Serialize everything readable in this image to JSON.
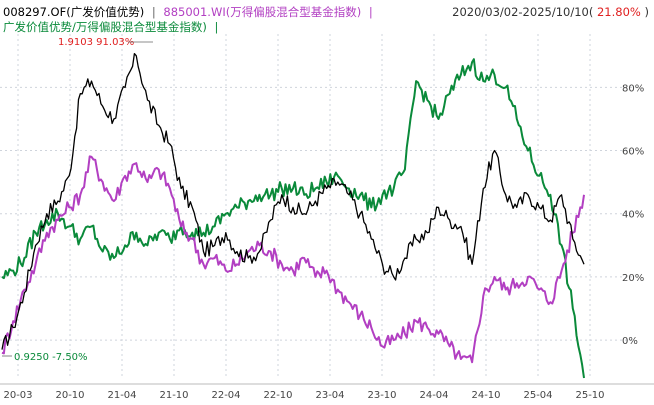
{
  "header": {
    "fund_label": "008297.OF(广发价值优势)",
    "separator": "|",
    "index_label": "885001.WI(万得偏股混合型基金指数)",
    "range_prefix": "2020/03/02-2025/10/10(",
    "range_value": "21.80%",
    "range_suffix": ")",
    "ratio_label": "广发价值优势/万得偏股混合型基金指数)",
    "ratio_separator": "|"
  },
  "annotations": {
    "max_label": "1.9103 91.03%",
    "min_label": "0.9250 -7.50%"
  },
  "colors": {
    "fund": "#000000",
    "index": "#b23fc2",
    "ratio": "#0a8a3a",
    "grid": "#cfd4dc",
    "up": "#e02020"
  },
  "chart_data": {
    "type": "line",
    "x_ticks": [
      "20-03",
      "20-10",
      "21-04",
      "21-10",
      "22-04",
      "22-10",
      "23-04",
      "23-10",
      "24-04",
      "24-10",
      "25-04",
      "25-10"
    ],
    "y_ticks": [
      "0%",
      "20%",
      "40%",
      "60%",
      "80%"
    ],
    "ylim": [
      -12,
      95
    ],
    "grid": true,
    "series": [
      {
        "name": "008297.OF(广发价值优势)",
        "color": "#000000",
        "points": [
          [
            0,
            -3
          ],
          [
            1,
            4
          ],
          [
            2,
            15
          ],
          [
            3,
            30
          ],
          [
            4,
            40
          ],
          [
            5,
            44
          ],
          [
            6,
            52
          ],
          [
            7,
            78
          ],
          [
            8,
            82
          ],
          [
            9,
            74
          ],
          [
            10,
            70
          ],
          [
            11,
            80
          ],
          [
            12,
            90
          ],
          [
            13,
            76
          ],
          [
            14,
            68
          ],
          [
            15,
            62
          ],
          [
            16,
            48
          ],
          [
            17,
            42
          ],
          [
            18,
            28
          ],
          [
            19,
            30
          ],
          [
            20,
            34
          ],
          [
            21,
            28
          ],
          [
            22,
            26
          ],
          [
            23,
            28
          ],
          [
            24,
            38
          ],
          [
            25,
            46
          ],
          [
            26,
            42
          ],
          [
            27,
            40
          ],
          [
            28,
            44
          ],
          [
            29,
            48
          ],
          [
            30,
            50
          ],
          [
            31,
            46
          ],
          [
            32,
            40
          ],
          [
            33,
            32
          ],
          [
            34,
            24
          ],
          [
            35,
            20
          ],
          [
            36,
            26
          ],
          [
            37,
            32
          ],
          [
            38,
            34
          ],
          [
            39,
            42
          ],
          [
            40,
            38
          ],
          [
            41,
            36
          ],
          [
            42,
            24
          ],
          [
            43,
            48
          ],
          [
            44,
            60
          ],
          [
            45,
            46
          ],
          [
            46,
            42
          ],
          [
            47,
            46
          ],
          [
            48,
            42
          ],
          [
            49,
            38
          ],
          [
            50,
            46
          ],
          [
            51,
            32
          ],
          [
            52,
            24
          ]
        ]
      },
      {
        "name": "885001.WI(万得偏股混合型基金指数)",
        "color": "#b23fc2",
        "points": [
          [
            0,
            -4
          ],
          [
            1,
            6
          ],
          [
            2,
            16
          ],
          [
            3,
            24
          ],
          [
            4,
            34
          ],
          [
            5,
            38
          ],
          [
            6,
            42
          ],
          [
            7,
            46
          ],
          [
            8,
            58
          ],
          [
            9,
            50
          ],
          [
            10,
            44
          ],
          [
            11,
            52
          ],
          [
            12,
            56
          ],
          [
            13,
            50
          ],
          [
            14,
            54
          ],
          [
            15,
            48
          ],
          [
            16,
            36
          ],
          [
            17,
            32
          ],
          [
            18,
            24
          ],
          [
            19,
            26
          ],
          [
            20,
            22
          ],
          [
            21,
            24
          ],
          [
            22,
            28
          ],
          [
            23,
            30
          ],
          [
            24,
            28
          ],
          [
            25,
            24
          ],
          [
            26,
            22
          ],
          [
            27,
            26
          ],
          [
            28,
            20
          ],
          [
            29,
            22
          ],
          [
            30,
            16
          ],
          [
            31,
            12
          ],
          [
            32,
            8
          ],
          [
            33,
            4
          ],
          [
            34,
            -2
          ],
          [
            35,
            0
          ],
          [
            36,
            2
          ],
          [
            37,
            6
          ],
          [
            38,
            4
          ],
          [
            39,
            2
          ],
          [
            40,
            -2
          ],
          [
            41,
            -6
          ],
          [
            42,
            -7
          ],
          [
            43,
            14
          ],
          [
            44,
            20
          ],
          [
            45,
            16
          ],
          [
            46,
            18
          ],
          [
            47,
            20
          ],
          [
            48,
            16
          ],
          [
            49,
            12
          ],
          [
            50,
            22
          ],
          [
            51,
            34
          ],
          [
            52,
            46
          ]
        ]
      },
      {
        "name": "广发价值优势/万得偏股混合型基金指数",
        "color": "#0a8a3a",
        "points": [
          [
            0,
            20
          ],
          [
            1,
            22
          ],
          [
            2,
            26
          ],
          [
            3,
            34
          ],
          [
            4,
            38
          ],
          [
            5,
            40
          ],
          [
            6,
            36
          ],
          [
            7,
            32
          ],
          [
            8,
            36
          ],
          [
            9,
            28
          ],
          [
            10,
            26
          ],
          [
            11,
            30
          ],
          [
            12,
            34
          ],
          [
            13,
            30
          ],
          [
            14,
            34
          ],
          [
            15,
            32
          ],
          [
            16,
            36
          ],
          [
            17,
            34
          ],
          [
            18,
            34
          ],
          [
            19,
            36
          ],
          [
            20,
            40
          ],
          [
            21,
            42
          ],
          [
            22,
            44
          ],
          [
            23,
            46
          ],
          [
            24,
            46
          ],
          [
            25,
            48
          ],
          [
            26,
            48
          ],
          [
            27,
            46
          ],
          [
            28,
            48
          ],
          [
            29,
            50
          ],
          [
            30,
            52
          ],
          [
            31,
            48
          ],
          [
            32,
            46
          ],
          [
            33,
            42
          ],
          [
            34,
            46
          ],
          [
            35,
            48
          ],
          [
            36,
            54
          ],
          [
            37,
            82
          ],
          [
            38,
            76
          ],
          [
            39,
            70
          ],
          [
            40,
            78
          ],
          [
            41,
            84
          ],
          [
            42,
            88
          ],
          [
            43,
            82
          ],
          [
            44,
            84
          ],
          [
            45,
            80
          ],
          [
            46,
            70
          ],
          [
            47,
            60
          ],
          [
            48,
            52
          ],
          [
            49,
            46
          ],
          [
            50,
            30
          ],
          [
            51,
            10
          ],
          [
            52,
            -12
          ]
        ]
      }
    ]
  }
}
